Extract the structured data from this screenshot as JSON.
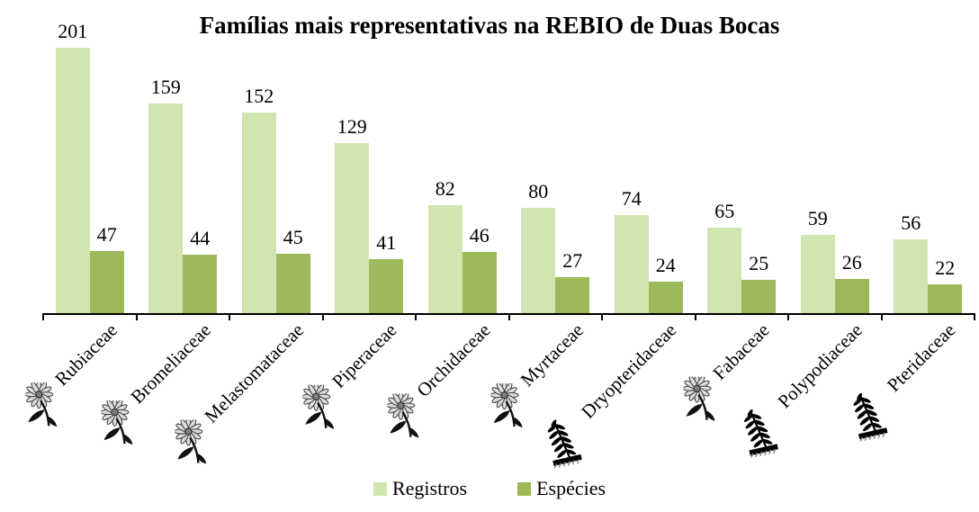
{
  "chart_data": {
    "type": "bar",
    "title": "Famílias mais representativas na REBIO de Duas Bocas",
    "categories": [
      "Rubiaceae",
      "Bromeliaceae",
      "Melastomataceae",
      "Piperaceae",
      "Orchidaceae",
      "Myrtaceae",
      "Dryopteridaceae",
      "Fabaceae",
      "Polypodiaceae",
      "Pteridaceae"
    ],
    "category_icons": [
      "flower",
      "flower",
      "flower",
      "flower",
      "flower",
      "flower",
      "fern",
      "flower",
      "fern",
      "fern"
    ],
    "series": [
      {
        "name": "Registros",
        "color": "#d1e5b0",
        "values": [
          201,
          159,
          152,
          129,
          82,
          80,
          74,
          65,
          59,
          56
        ]
      },
      {
        "name": "Espécies",
        "color": "#9cba59",
        "values": [
          47,
          44,
          45,
          41,
          46,
          27,
          24,
          25,
          26,
          22
        ]
      }
    ],
    "ylim": [
      0,
      201
    ],
    "grid": false,
    "legend_position": "bottom",
    "data_labels": true,
    "axis_color": "#000000",
    "background": "#ffffff"
  }
}
